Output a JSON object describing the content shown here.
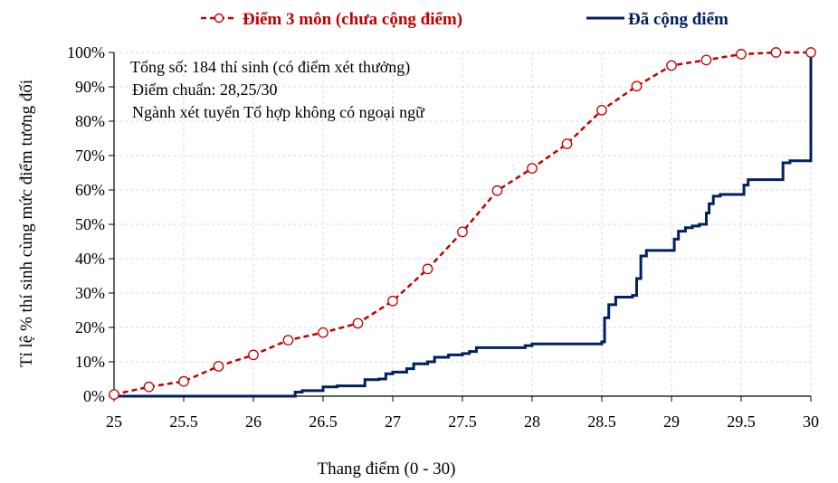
{
  "chart_data": {
    "type": "line",
    "xlabel": "Thang điểm (0 - 30)",
    "ylabel": "Tỉ lệ % thí sinh cùng mức điểm tương đối",
    "xlim": [
      25,
      30
    ],
    "ylim": [
      0,
      1
    ],
    "grid": true,
    "legend_position": "top",
    "x_ticks": [
      "25",
      "25.5",
      "26",
      "26.5",
      "27",
      "27.5",
      "28",
      "28.5",
      "29",
      "29.5",
      "30"
    ],
    "y_ticks": [
      "0%",
      "10%",
      "20%",
      "30%",
      "40%",
      "50%",
      "60%",
      "70%",
      "80%",
      "90%",
      "100%"
    ],
    "annotations": [
      "Tổng số: 184 thí sinh  (có điểm xét thưởng)",
      "Điểm chuẩn: 28,25/30",
      "Ngành xét tuyển Tổ hợp không có ngoại ngữ"
    ],
    "series": [
      {
        "name": "Điểm 3 môn (chưa cộng điểm)",
        "color": "#c00000",
        "style": "dashed-with-circle-markers",
        "x": [
          25,
          25.25,
          25.5,
          25.75,
          26,
          26.25,
          26.5,
          26.75,
          27,
          27.25,
          27.5,
          27.75,
          28,
          28.25,
          28.5,
          28.75,
          29,
          29.25,
          29.5,
          29.75,
          30
        ],
        "y": [
          0.005,
          0.027,
          0.043,
          0.087,
          0.12,
          0.163,
          0.185,
          0.212,
          0.277,
          0.37,
          0.478,
          0.598,
          0.663,
          0.734,
          0.832,
          0.902,
          0.962,
          0.978,
          0.995,
          1.0,
          1.0
        ]
      },
      {
        "name": "Đã cộng điểm",
        "color": "#002060",
        "style": "step",
        "x": [
          25,
          26.25,
          26.3,
          26.35,
          26.4,
          26.5,
          26.6,
          26.75,
          26.8,
          26.9,
          26.95,
          27,
          27.1,
          27.15,
          27.25,
          27.3,
          27.4,
          27.5,
          27.55,
          27.6,
          27.75,
          27.95,
          28,
          28.5,
          28.52,
          28.55,
          28.6,
          28.72,
          28.75,
          28.78,
          28.82,
          29,
          29.02,
          29.05,
          29.1,
          29.15,
          29.2,
          29.25,
          29.27,
          29.3,
          29.35,
          29.5,
          29.52,
          29.55,
          29.6,
          29.75,
          29.8,
          29.85,
          30,
          30
        ],
        "y": [
          0,
          0,
          0.012,
          0.016,
          0.016,
          0.027,
          0.03,
          0.03,
          0.048,
          0.05,
          0.065,
          0.07,
          0.08,
          0.094,
          0.1,
          0.113,
          0.12,
          0.124,
          0.13,
          0.141,
          0.141,
          0.147,
          0.152,
          0.158,
          0.228,
          0.266,
          0.288,
          0.293,
          0.342,
          0.408,
          0.424,
          0.424,
          0.457,
          0.48,
          0.49,
          0.495,
          0.5,
          0.533,
          0.56,
          0.582,
          0.587,
          0.587,
          0.614,
          0.63,
          0.63,
          0.63,
          0.679,
          0.685,
          0.685,
          1.0
        ]
      }
    ]
  }
}
